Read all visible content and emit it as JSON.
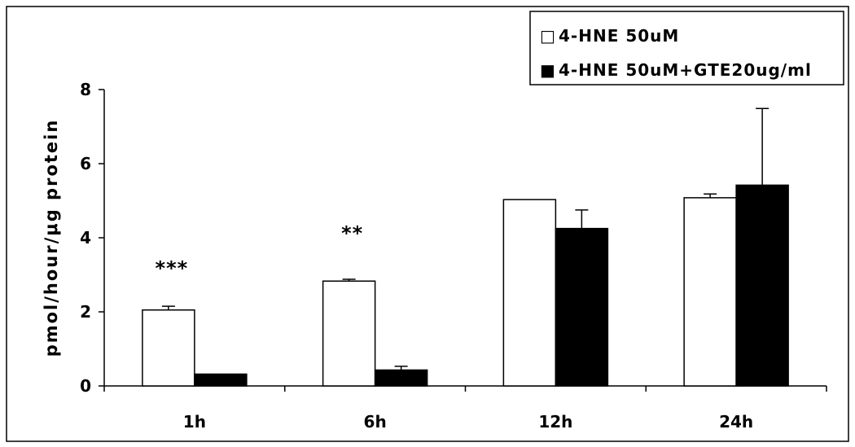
{
  "chart_data": {
    "type": "bar",
    "title": "",
    "xlabel": "",
    "ylabel": "pmol/hour/μg protein",
    "ylim": [
      0,
      8
    ],
    "yticks": [
      0,
      2,
      4,
      6,
      8
    ],
    "categories": [
      "1h",
      "6h",
      "12h",
      "24h"
    ],
    "series": [
      {
        "name": "4-HNE 50uM",
        "fill": "#ffffff",
        "values": [
          2.05,
          2.83,
          5.03,
          5.08
        ],
        "errors": [
          0.1,
          0.05,
          0.0,
          0.1
        ]
      },
      {
        "name": "4-HNE 50uM+GTE20ug/ml",
        "fill": "#000000",
        "values": [
          0.32,
          0.43,
          4.25,
          5.42
        ],
        "errors": [
          0.0,
          0.1,
          0.5,
          2.07
        ]
      }
    ],
    "annotations": [
      {
        "category": "1h",
        "text": "***",
        "y": 3.0
      },
      {
        "category": "6h",
        "text": "**",
        "y": 3.95
      }
    ],
    "legend": {
      "position": "top-right",
      "markers": [
        "□",
        "■"
      ]
    },
    "grid": false
  }
}
